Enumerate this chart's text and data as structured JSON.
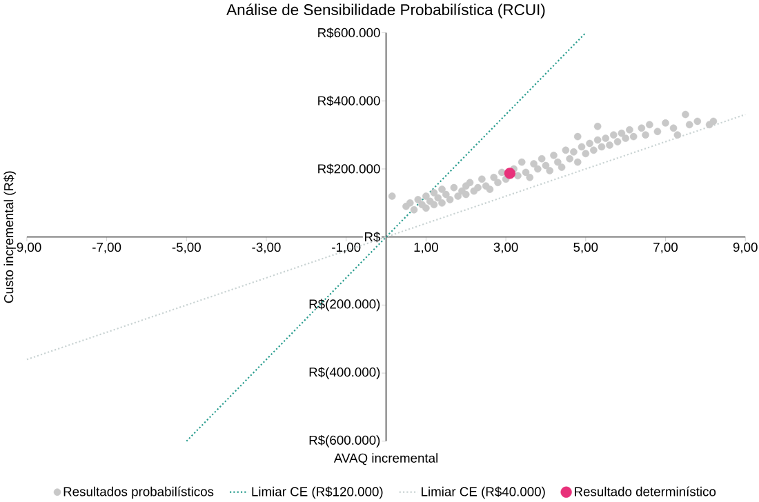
{
  "chart_data": {
    "type": "scatter",
    "title": "Análise de Sensibilidade Probabilística (RCUI)",
    "xlabel": "AVAQ incremental",
    "ylabel": "Custo incremental (R$)",
    "xlim": [
      -9,
      9
    ],
    "ylim": [
      -600000,
      600000
    ],
    "xticks": [
      {
        "value": -9,
        "label": "-9,00"
      },
      {
        "value": -7,
        "label": "-7,00"
      },
      {
        "value": -5,
        "label": "-5,00"
      },
      {
        "value": -3,
        "label": "-3,00"
      },
      {
        "value": -1,
        "label": "-1,00"
      },
      {
        "value": 1,
        "label": "1,00"
      },
      {
        "value": 3,
        "label": "3,00"
      },
      {
        "value": 5,
        "label": "5,00"
      },
      {
        "value": 7,
        "label": "7,00"
      },
      {
        "value": 9,
        "label": "9,00"
      }
    ],
    "yticks": [
      {
        "value": -600000,
        "label": "R$(600.000)"
      },
      {
        "value": -400000,
        "label": "R$(400.000)"
      },
      {
        "value": -200000,
        "label": "R$(200.000)"
      },
      {
        "value": 0,
        "label": "R$"
      },
      {
        "value": 200000,
        "label": "R$200.000"
      },
      {
        "value": 400000,
        "label": "R$400.000"
      },
      {
        "value": 600000,
        "label": "R$600.000"
      }
    ],
    "legend": "bottom",
    "grid": false,
    "series": [
      {
        "name": "Resultados probabilísticos",
        "marker": "circle",
        "color": "#c8c8c8",
        "x": [
          0.15,
          0.5,
          0.6,
          0.7,
          0.8,
          0.9,
          1.0,
          1.0,
          1.1,
          1.2,
          1.2,
          1.3,
          1.4,
          1.4,
          1.5,
          1.6,
          1.7,
          1.8,
          1.9,
          2.0,
          2.0,
          2.1,
          2.2,
          2.3,
          2.4,
          2.5,
          2.6,
          2.7,
          2.8,
          2.9,
          3.0,
          3.2,
          3.3,
          3.4,
          3.5,
          3.6,
          3.7,
          3.8,
          3.9,
          4.0,
          4.1,
          4.2,
          4.3,
          4.4,
          4.5,
          4.6,
          4.7,
          4.8,
          4.9,
          5.0,
          5.1,
          5.2,
          5.3,
          5.4,
          5.5,
          5.6,
          5.7,
          5.8,
          5.9,
          6.0,
          6.1,
          6.2,
          6.4,
          6.5,
          6.6,
          6.8,
          7.0,
          7.2,
          7.5,
          7.3,
          7.6,
          7.8,
          8.1,
          8.2,
          5.3,
          4.8
        ],
        "values": [
          120000,
          90000,
          100000,
          80000,
          110000,
          95000,
          120000,
          85000,
          105000,
          130000,
          95000,
          115000,
          140000,
          100000,
          125000,
          110000,
          145000,
          120000,
          135000,
          150000,
          125000,
          160000,
          135000,
          145000,
          170000,
          150000,
          140000,
          175000,
          160000,
          190000,
          170000,
          200000,
          180000,
          220000,
          190000,
          175000,
          215000,
          200000,
          230000,
          210000,
          195000,
          240000,
          220000,
          205000,
          255000,
          230000,
          250000,
          220000,
          265000,
          245000,
          275000,
          255000,
          285000,
          265000,
          290000,
          270000,
          300000,
          280000,
          305000,
          290000,
          315000,
          295000,
          320000,
          300000,
          330000,
          310000,
          335000,
          320000,
          360000,
          300000,
          330000,
          340000,
          330000,
          340000,
          325000,
          295000
        ]
      },
      {
        "name": "Limiar CE (R$120.000)",
        "type": "line",
        "line_style": "dotted",
        "color": "#2a9d8f",
        "x": [
          -5,
          5
        ],
        "values": [
          -600000,
          600000
        ]
      },
      {
        "name": "Limiar CE (R$40.000)",
        "type": "line",
        "line_style": "dotted",
        "color": "#c9d3d3",
        "x": [
          -9,
          9
        ],
        "values": [
          -360000,
          360000
        ]
      },
      {
        "name": "Resultado determinístico",
        "type": "scatter",
        "marker": "circle",
        "color": "#e8317a",
        "x": [
          3.1
        ],
        "values": [
          187000
        ]
      }
    ]
  }
}
